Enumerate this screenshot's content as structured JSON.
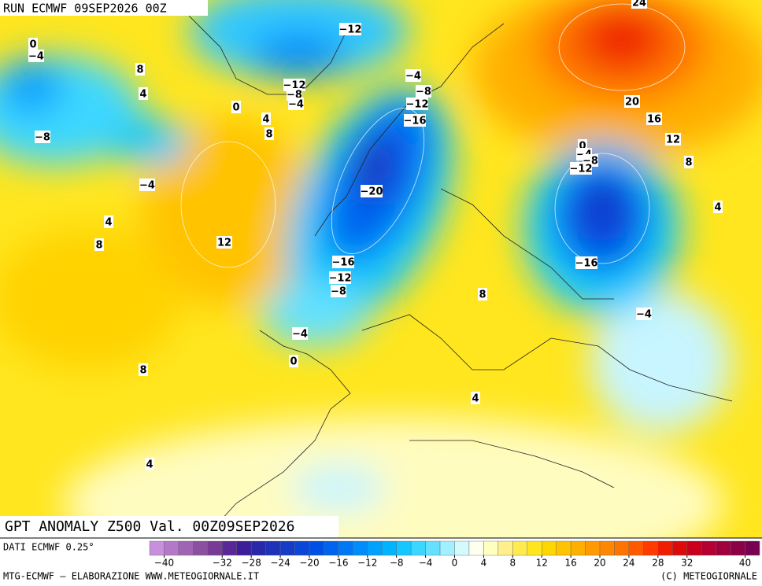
{
  "header": {
    "run": "RUN ECMWF 09SEP2026 00Z"
  },
  "title": "GPT ANOMALY Z500 Val. 00Z09SEP2026",
  "source": "DATI ECMWF 0.25°",
  "footer": {
    "left": "MTG-ECMWF – ELABORAZIONE WWW.METEOGIORNALE.IT",
    "right": "(C) METEOGIORNALE"
  },
  "contour_labels": [
    "0",
    "−4",
    "8",
    "4",
    "−8",
    "−4",
    "4",
    "8",
    "12",
    "8",
    "4",
    "0",
    "4",
    "8",
    "−12",
    "−12",
    "−8",
    "−4",
    "−4",
    "−8",
    "−12",
    "−16",
    "−20",
    "−16",
    "−12",
    "−8",
    "−4",
    "0",
    "8",
    "4",
    "24",
    "20",
    "16",
    "12",
    "8",
    "4",
    "0",
    "−4",
    "−8",
    "−12",
    "−16",
    "−4"
  ],
  "colorbar": {
    "colors": [
      "#c890dc",
      "#b478c8",
      "#a064b4",
      "#8c50a0",
      "#783c96",
      "#5a2896",
      "#3c1e9b",
      "#2828a8",
      "#1e32b9",
      "#143cc8",
      "#0a46d7",
      "#0050e6",
      "#0064f0",
      "#0078f5",
      "#008cfa",
      "#00a0ff",
      "#00b4ff",
      "#14c8ff",
      "#3cd7ff",
      "#64e1ff",
      "#a0f0ff",
      "#d2faff",
      "#fffff0",
      "#ffffc0",
      "#fff08c",
      "#ffeb50",
      "#ffe61e",
      "#ffd700",
      "#ffc300",
      "#ffaf00",
      "#ff9b00",
      "#ff8700",
      "#ff7300",
      "#ff5a00",
      "#ff3c00",
      "#f01e00",
      "#dc0a0a",
      "#c8001e",
      "#b40032",
      "#a0003c",
      "#8c0046",
      "#780050"
    ],
    "ticks": [
      {
        "value": -40,
        "label": "−40"
      },
      {
        "value": -32,
        "label": "−32"
      },
      {
        "value": -28,
        "label": "−28"
      },
      {
        "value": -24,
        "label": "−24"
      },
      {
        "value": -20,
        "label": "−20"
      },
      {
        "value": -16,
        "label": "−16"
      },
      {
        "value": -12,
        "label": "−12"
      },
      {
        "value": -8,
        "label": "−8"
      },
      {
        "value": -4,
        "label": "−4"
      },
      0,
      4,
      8,
      12,
      16,
      20,
      24,
      28,
      32,
      40
    ]
  }
}
